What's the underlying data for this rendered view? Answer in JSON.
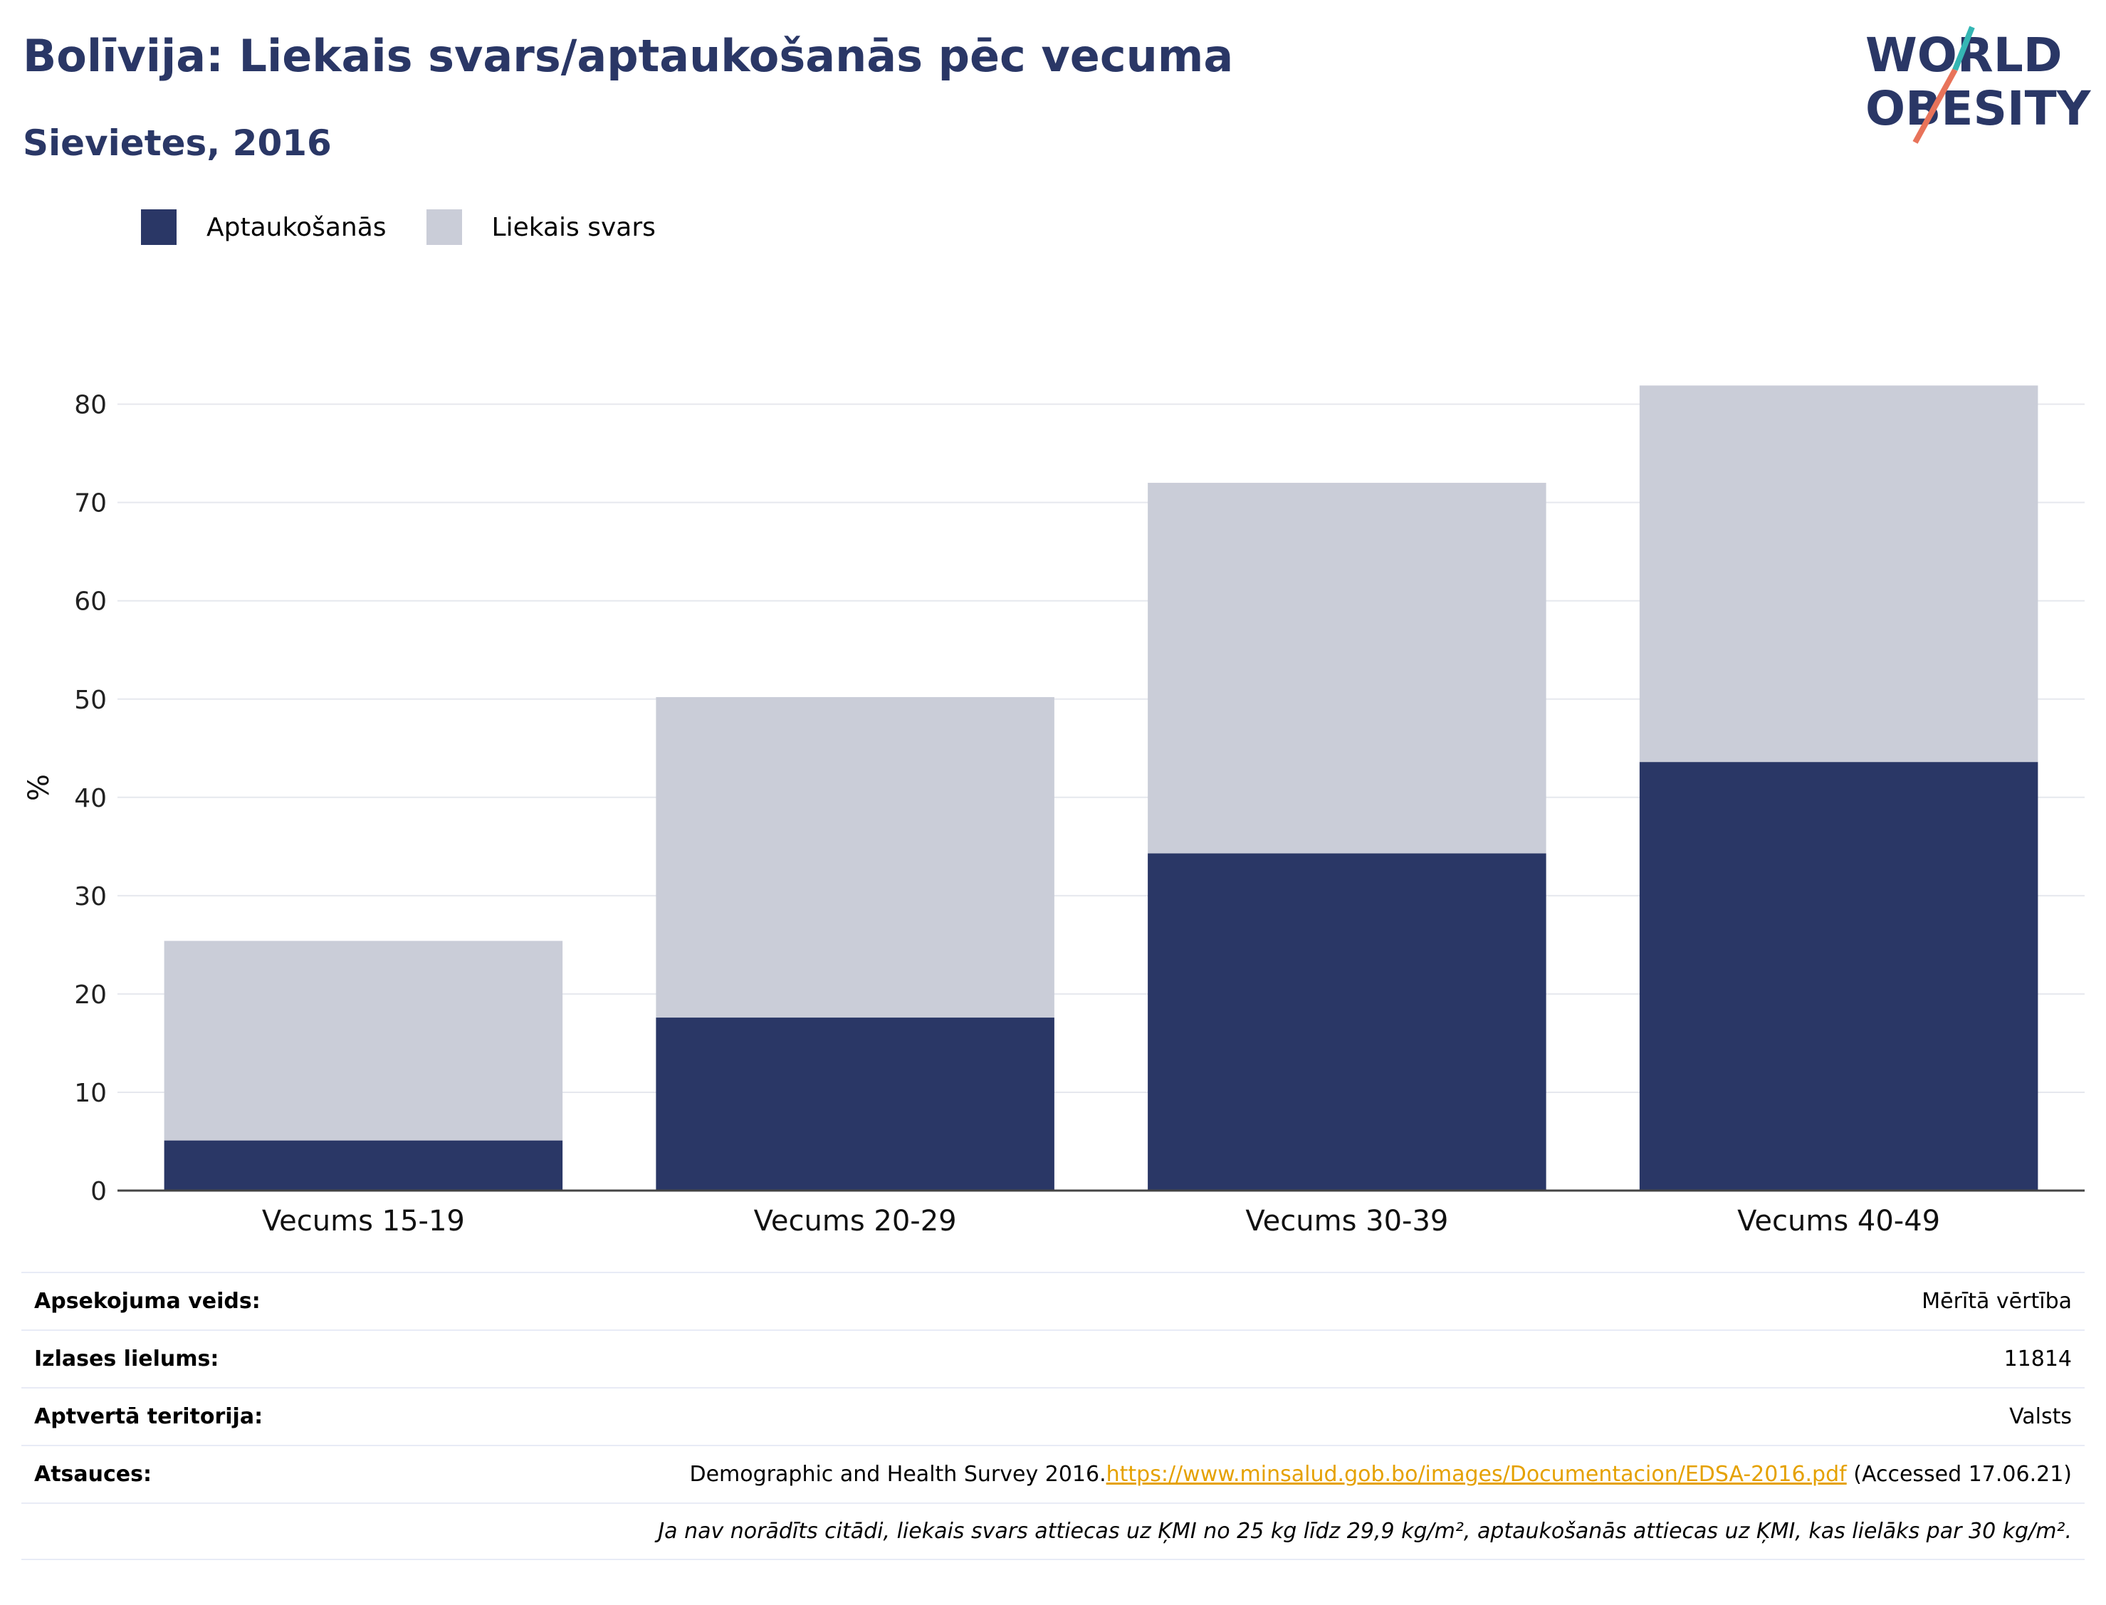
{
  "title": "Bolīvija: Liekais svars/aptaukošanās pēc vecuma",
  "subtitle": "Sievietes, 2016",
  "logo": {
    "line1": "WORLD",
    "line2": "OBESITY"
  },
  "colors": {
    "obesity": "#2a3766",
    "overweight": "#cacdd8",
    "title": "#2a3766",
    "link": "#e5a100",
    "grid": "#e6e8ee"
  },
  "chart_data": {
    "type": "bar",
    "stacked": true,
    "categories": [
      "Vecums 15-19",
      "Vecums 20-29",
      "Vecums 30-39",
      "Vecums 40-49"
    ],
    "series": [
      {
        "name": "Aptaukošanās",
        "values": [
          5.1,
          17.6,
          34.3,
          43.6
        ]
      },
      {
        "name": "Liekais svars",
        "values": [
          20.3,
          32.6,
          37.7,
          38.3
        ]
      }
    ],
    "ylabel": "%",
    "ylim": [
      0,
      82
    ],
    "yticks": [
      0,
      10,
      20,
      30,
      40,
      50,
      60,
      70,
      80
    ],
    "grid": true,
    "legend_position": "top-left"
  },
  "info": {
    "survey_type_label": "Apsekojuma veids:",
    "survey_type_value": "Mērītā vērtība",
    "sample_size_label": "Izlases lielums:",
    "sample_size_value": "11814",
    "coverage_label": "Aptvertā teritorija:",
    "coverage_value": "Valsts",
    "references_label": "Atsauces:",
    "references_text": "Demographic and Health Survey 2016.",
    "references_link": "https://www.minsalud.gob.bo/images/Documentacion/EDSA-2016.pdf",
    "references_accessed": " (Accessed 17.06.21)",
    "note": "Ja nav norādīts citādi, liekais svars attiecas uz ĶMI no 25 kg līdz 29,9 kg/m², aptaukošanās attiecas uz ĶMI, kas lielāks par 30 kg/m²."
  }
}
